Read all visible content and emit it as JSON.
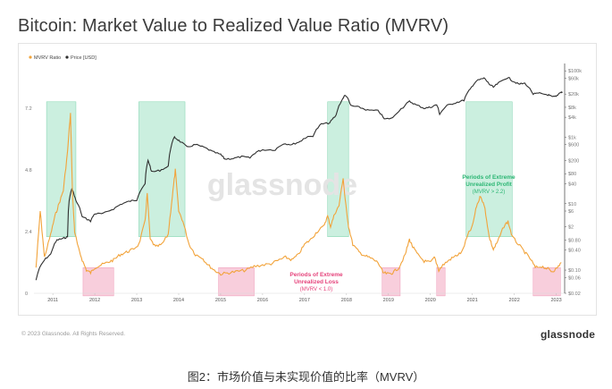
{
  "title": "Bitcoin: Market Value to Realized Value Ratio (MVRV)",
  "caption": "图2：市场价值与未实现价值的比率（MVRV）",
  "footer": {
    "copyright": "© 2023 Glassnode. All Rights Reserved.",
    "brand": "glassnode"
  },
  "watermark": "glassnode",
  "colors": {
    "mvrv": "#f2a33a",
    "price": "#2f2f2f",
    "profit_zone": "#b9ead4",
    "loss_zone": "#f7c6d6",
    "profit_text": "#2bb673",
    "loss_text": "#e5417a"
  },
  "chart_data": {
    "type": "line",
    "legend": [
      "MVRV Ratio",
      "Price [USD]"
    ],
    "x_ticks": [
      "2011",
      "2012",
      "2013",
      "2014",
      "2015",
      "2016",
      "2017",
      "2018",
      "2019",
      "2020",
      "2021",
      "2022",
      "2023"
    ],
    "x_range": [
      2010.55,
      2023.2
    ],
    "left_axis": {
      "label": "MVRV Ratio",
      "ticks": [
        "7.2",
        "4.8",
        "2.4",
        "0"
      ],
      "range": [
        0,
        8.8
      ]
    },
    "right_axis": {
      "label": "Price [USD]",
      "scale": "log",
      "ticks": [
        "$100k",
        "$60k",
        "$20k",
        "$8k",
        "$4k",
        "$1k",
        "$600",
        "$200",
        "$80",
        "$40",
        "$10",
        "$6",
        "$2",
        "$0.80",
        "$0.40",
        "$0.10",
        "$0.06",
        "$0.02"
      ]
    },
    "series": [
      {
        "name": "MVRV Ratio",
        "points": [
          [
            2010.6,
            1.0
          ],
          [
            2010.7,
            3.2
          ],
          [
            2010.8,
            1.4
          ],
          [
            2010.95,
            2.3
          ],
          [
            2011.05,
            3.0
          ],
          [
            2011.15,
            3.5
          ],
          [
            2011.25,
            4.0
          ],
          [
            2011.35,
            5.5
          ],
          [
            2011.42,
            7.0
          ],
          [
            2011.47,
            3.8
          ],
          [
            2011.52,
            2.4
          ],
          [
            2011.6,
            1.8
          ],
          [
            2011.7,
            1.3
          ],
          [
            2011.8,
            0.9
          ],
          [
            2011.9,
            0.8
          ],
          [
            2012.0,
            1.0
          ],
          [
            2012.15,
            1.1
          ],
          [
            2012.3,
            1.2
          ],
          [
            2012.45,
            1.3
          ],
          [
            2012.6,
            1.5
          ],
          [
            2012.75,
            1.6
          ],
          [
            2012.9,
            1.7
          ],
          [
            2013.05,
            1.9
          ],
          [
            2013.2,
            2.8
          ],
          [
            2013.25,
            3.9
          ],
          [
            2013.32,
            2.1
          ],
          [
            2013.45,
            1.8
          ],
          [
            2013.6,
            1.9
          ],
          [
            2013.75,
            2.3
          ],
          [
            2013.85,
            3.8
          ],
          [
            2013.92,
            4.8
          ],
          [
            2014.0,
            3.2
          ],
          [
            2014.1,
            2.8
          ],
          [
            2014.25,
            1.9
          ],
          [
            2014.4,
            1.5
          ],
          [
            2014.55,
            1.4
          ],
          [
            2014.7,
            1.1
          ],
          [
            2014.85,
            0.9
          ],
          [
            2015.0,
            0.75
          ],
          [
            2015.2,
            0.8
          ],
          [
            2015.4,
            0.85
          ],
          [
            2015.6,
            0.9
          ],
          [
            2015.8,
            1.05
          ],
          [
            2016.0,
            1.1
          ],
          [
            2016.2,
            1.15
          ],
          [
            2016.4,
            1.3
          ],
          [
            2016.55,
            1.4
          ],
          [
            2016.7,
            1.3
          ],
          [
            2016.85,
            1.5
          ],
          [
            2017.0,
            1.9
          ],
          [
            2017.15,
            2.1
          ],
          [
            2017.3,
            2.4
          ],
          [
            2017.45,
            2.6
          ],
          [
            2017.55,
            3.0
          ],
          [
            2017.62,
            2.6
          ],
          [
            2017.72,
            3.1
          ],
          [
            2017.82,
            3.4
          ],
          [
            2017.92,
            4.5
          ],
          [
            2017.97,
            3.6
          ],
          [
            2018.05,
            2.6
          ],
          [
            2018.15,
            1.9
          ],
          [
            2018.3,
            1.6
          ],
          [
            2018.45,
            1.45
          ],
          [
            2018.6,
            1.35
          ],
          [
            2018.75,
            1.2
          ],
          [
            2018.87,
            0.8
          ],
          [
            2019.0,
            0.75
          ],
          [
            2019.1,
            0.8
          ],
          [
            2019.25,
            1.0
          ],
          [
            2019.4,
            1.5
          ],
          [
            2019.5,
            2.1
          ],
          [
            2019.58,
            1.8
          ],
          [
            2019.7,
            1.5
          ],
          [
            2019.85,
            1.25
          ],
          [
            2020.0,
            1.2
          ],
          [
            2020.1,
            1.4
          ],
          [
            2020.2,
            0.9
          ],
          [
            2020.3,
            1.1
          ],
          [
            2020.45,
            1.3
          ],
          [
            2020.6,
            1.45
          ],
          [
            2020.75,
            1.6
          ],
          [
            2020.9,
            2.3
          ],
          [
            2021.0,
            2.6
          ],
          [
            2021.1,
            3.4
          ],
          [
            2021.2,
            3.8
          ],
          [
            2021.3,
            3.3
          ],
          [
            2021.4,
            2.2
          ],
          [
            2021.5,
            1.7
          ],
          [
            2021.6,
            2.0
          ],
          [
            2021.75,
            2.6
          ],
          [
            2021.85,
            2.8
          ],
          [
            2021.95,
            2.2
          ],
          [
            2022.1,
            1.9
          ],
          [
            2022.25,
            1.6
          ],
          [
            2022.4,
            1.3
          ],
          [
            2022.5,
            1.0
          ],
          [
            2022.65,
            1.05
          ],
          [
            2022.8,
            0.95
          ],
          [
            2022.9,
            0.85
          ],
          [
            2023.0,
            0.95
          ],
          [
            2023.12,
            1.2
          ]
        ]
      },
      {
        "name": "Price [USD]",
        "points": [
          [
            2010.6,
            0.05
          ],
          [
            2010.8,
            0.2
          ],
          [
            2010.95,
            0.3
          ],
          [
            2011.1,
            0.8
          ],
          [
            2011.25,
            0.9
          ],
          [
            2011.35,
            1.0
          ],
          [
            2011.45,
            28
          ],
          [
            2011.55,
            12
          ],
          [
            2011.7,
            4
          ],
          [
            2011.9,
            3
          ],
          [
            2012.0,
            5
          ],
          [
            2012.2,
            5
          ],
          [
            2012.45,
            7
          ],
          [
            2012.65,
            10
          ],
          [
            2012.85,
            12
          ],
          [
            2013.0,
            13
          ],
          [
            2013.2,
            40
          ],
          [
            2013.27,
            200
          ],
          [
            2013.35,
            90
          ],
          [
            2013.55,
            100
          ],
          [
            2013.75,
            130
          ],
          [
            2013.9,
            1000
          ],
          [
            2014.0,
            800
          ],
          [
            2014.2,
            500
          ],
          [
            2014.4,
            600
          ],
          [
            2014.6,
            500
          ],
          [
            2014.8,
            370
          ],
          [
            2015.0,
            300
          ],
          [
            2015.1,
            220
          ],
          [
            2015.3,
            230
          ],
          [
            2015.5,
            260
          ],
          [
            2015.7,
            240
          ],
          [
            2015.85,
            360
          ],
          [
            2016.0,
            420
          ],
          [
            2016.3,
            420
          ],
          [
            2016.5,
            650
          ],
          [
            2016.7,
            600
          ],
          [
            2016.9,
            750
          ],
          [
            2017.0,
            950
          ],
          [
            2017.2,
            1100
          ],
          [
            2017.4,
            2500
          ],
          [
            2017.6,
            2700
          ],
          [
            2017.75,
            4500
          ],
          [
            2017.92,
            15000
          ],
          [
            2017.97,
            19000
          ],
          [
            2018.1,
            9000
          ],
          [
            2018.3,
            8000
          ],
          [
            2018.5,
            6500
          ],
          [
            2018.75,
            6300
          ],
          [
            2018.9,
            3500
          ],
          [
            2019.1,
            3800
          ],
          [
            2019.35,
            8000
          ],
          [
            2019.5,
            12000
          ],
          [
            2019.65,
            9500
          ],
          [
            2019.85,
            7500
          ],
          [
            2020.0,
            8000
          ],
          [
            2020.15,
            9500
          ],
          [
            2020.22,
            5000
          ],
          [
            2020.4,
            9000
          ],
          [
            2020.6,
            11000
          ],
          [
            2020.8,
            13000
          ],
          [
            2020.95,
            28000
          ],
          [
            2021.1,
            50000
          ],
          [
            2021.28,
            60000
          ],
          [
            2021.4,
            40000
          ],
          [
            2021.5,
            32000
          ],
          [
            2021.65,
            45000
          ],
          [
            2021.85,
            64000
          ],
          [
            2021.95,
            50000
          ],
          [
            2022.1,
            40000
          ],
          [
            2022.25,
            42000
          ],
          [
            2022.45,
            20000
          ],
          [
            2022.6,
            21000
          ],
          [
            2022.8,
            19000
          ],
          [
            2022.9,
            16500
          ],
          [
            2023.0,
            16800
          ],
          [
            2023.1,
            23000
          ],
          [
            2023.15,
            22500
          ]
        ]
      }
    ],
    "zones": [
      {
        "type": "profit",
        "from": 2010.85,
        "to": 2011.55
      },
      {
        "type": "loss",
        "from": 2011.72,
        "to": 2012.45
      },
      {
        "type": "profit",
        "from": 2013.05,
        "to": 2014.15
      },
      {
        "type": "loss",
        "from": 2014.95,
        "to": 2015.8
      },
      {
        "type": "profit",
        "from": 2017.55,
        "to": 2018.05
      },
      {
        "type": "loss",
        "from": 2018.85,
        "to": 2019.28
      },
      {
        "type": "loss",
        "from": 2020.15,
        "to": 2020.35
      },
      {
        "type": "profit",
        "from": 2020.85,
        "to": 2021.95
      },
      {
        "type": "loss",
        "from": 2022.45,
        "to": 2023.1
      }
    ],
    "annotations": {
      "profit": {
        "title_line1": "Periods of Extreme",
        "title_line2": "Unrealized Profit",
        "detail": "(MVRV > 2.2)"
      },
      "loss": {
        "title_line1": "Periods of Extreme",
        "title_line2": "Unrealized Loss",
        "detail": "(MVRV < 1.0)"
      }
    }
  }
}
